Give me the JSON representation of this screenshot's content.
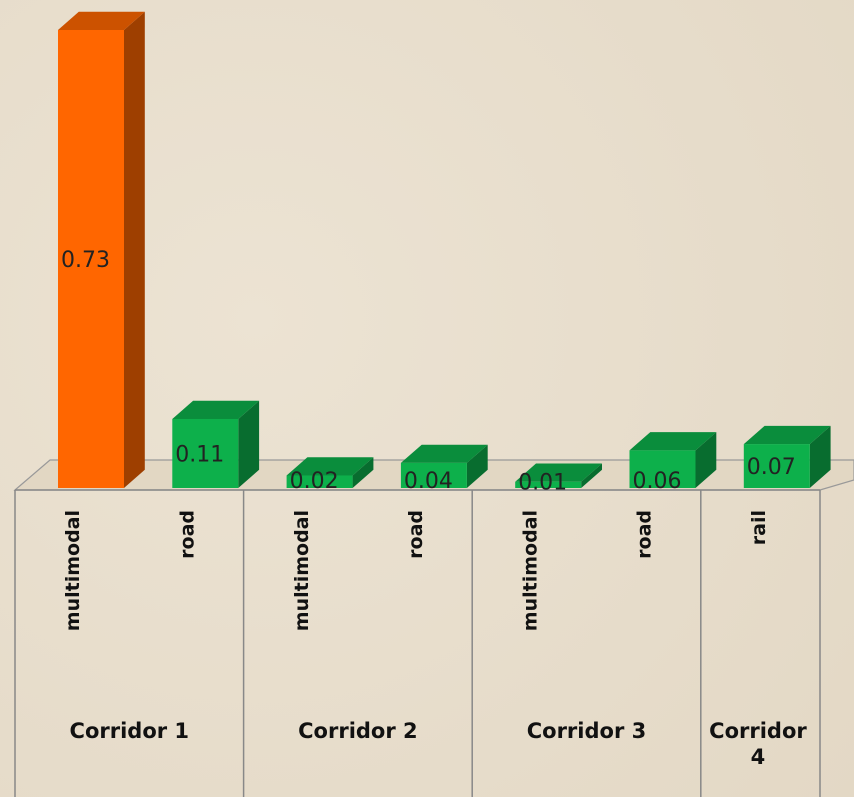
{
  "chart_data": {
    "type": "bar",
    "groups": [
      {
        "name": "Corridor 1",
        "categories": [
          "multimodal",
          "road"
        ],
        "values": [
          0.73,
          0.11
        ],
        "colors": [
          "#ff6600",
          "#0db04b"
        ]
      },
      {
        "name": "Corridor 2",
        "categories": [
          "multimodal",
          "road"
        ],
        "values": [
          0.02,
          0.04
        ],
        "colors": [
          "#0db04b",
          "#0db04b"
        ]
      },
      {
        "name": "Corridor 3",
        "categories": [
          "multimodal",
          "road"
        ],
        "values": [
          0.01,
          0.06
        ],
        "colors": [
          "#0db04b",
          "#0db04b"
        ]
      },
      {
        "name": "Corridor 4",
        "categories": [
          "rail"
        ],
        "values": [
          0.07
        ],
        "colors": [
          "#0db04b"
        ]
      }
    ]
  }
}
